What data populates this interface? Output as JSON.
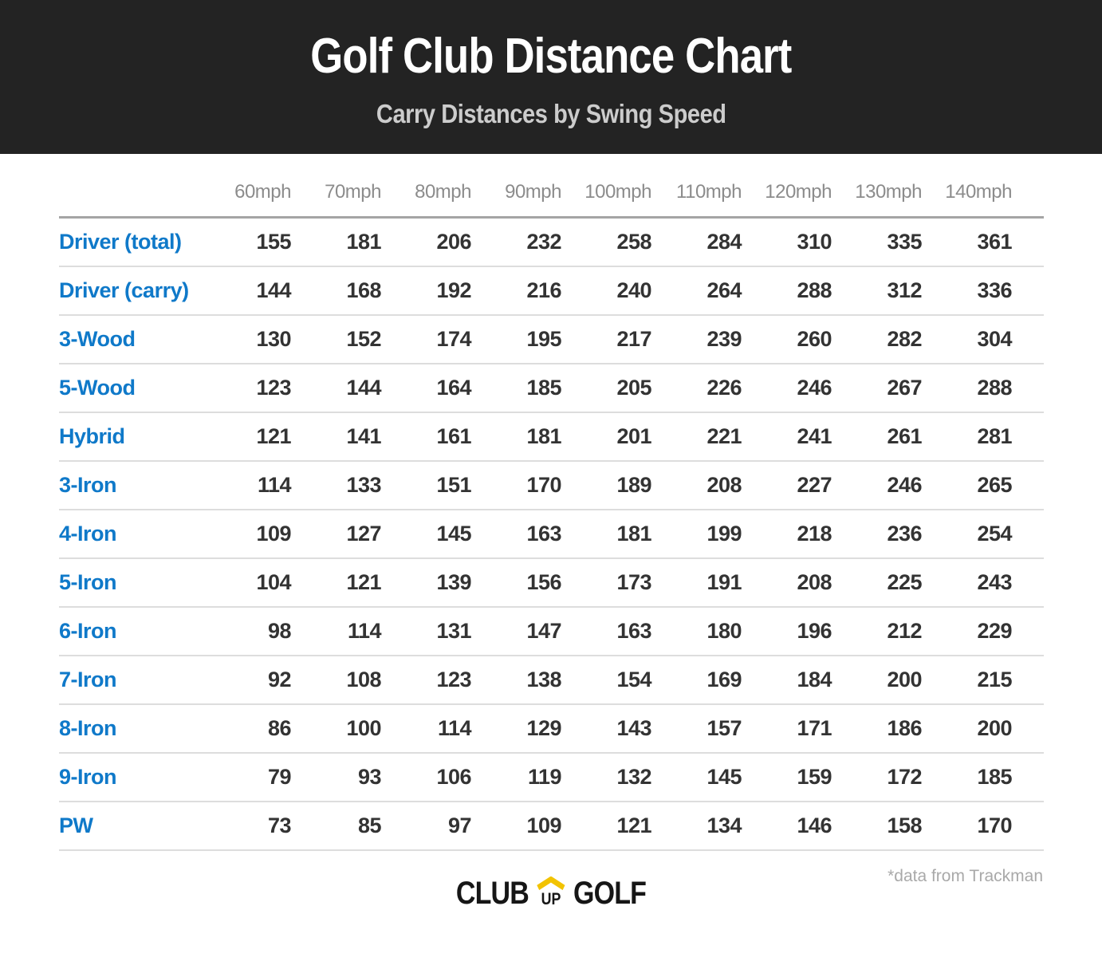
{
  "banner": {
    "title": "Golf Club Distance Chart",
    "subtitle": "Carry Distances by Swing Speed"
  },
  "chart_data": {
    "type": "table",
    "title": "Golf Club Distance Chart",
    "subtitle": "Carry Distances by Swing Speed",
    "categories": [
      "60mph",
      "70mph",
      "80mph",
      "90mph",
      "100mph",
      "110mph",
      "120mph",
      "130mph",
      "140mph"
    ],
    "series": [
      {
        "name": "Driver (total)",
        "values": [
          155,
          181,
          206,
          232,
          258,
          284,
          310,
          335,
          361
        ]
      },
      {
        "name": "Driver (carry)",
        "values": [
          144,
          168,
          192,
          216,
          240,
          264,
          288,
          312,
          336
        ]
      },
      {
        "name": "3-Wood",
        "values": [
          130,
          152,
          174,
          195,
          217,
          239,
          260,
          282,
          304
        ]
      },
      {
        "name": "5-Wood",
        "values": [
          123,
          144,
          164,
          185,
          205,
          226,
          246,
          267,
          288
        ]
      },
      {
        "name": "Hybrid",
        "values": [
          121,
          141,
          161,
          181,
          201,
          221,
          241,
          261,
          281
        ]
      },
      {
        "name": "3-Iron",
        "values": [
          114,
          133,
          151,
          170,
          189,
          208,
          227,
          246,
          265
        ]
      },
      {
        "name": "4-Iron",
        "values": [
          109,
          127,
          145,
          163,
          181,
          199,
          218,
          236,
          254
        ]
      },
      {
        "name": "5-Iron",
        "values": [
          104,
          121,
          139,
          156,
          173,
          191,
          208,
          225,
          243
        ]
      },
      {
        "name": "6-Iron",
        "values": [
          98,
          114,
          131,
          147,
          163,
          180,
          196,
          212,
          229
        ]
      },
      {
        "name": "7-Iron",
        "values": [
          92,
          108,
          123,
          138,
          154,
          169,
          184,
          200,
          215
        ]
      },
      {
        "name": "8-Iron",
        "values": [
          86,
          100,
          114,
          129,
          143,
          157,
          171,
          186,
          200
        ]
      },
      {
        "name": "9-Iron",
        "values": [
          79,
          93,
          106,
          119,
          132,
          145,
          159,
          172,
          185
        ]
      },
      {
        "name": "PW",
        "values": [
          73,
          85,
          97,
          109,
          121,
          134,
          146,
          158,
          170
        ]
      }
    ],
    "row_header_label": "",
    "legend_position": "none",
    "grid": "horizontal-rules"
  },
  "footer": {
    "note": "*data from Trackman",
    "logo": {
      "club": "CLUB",
      "up": "UP",
      "golf": "GOLF",
      "chevron_icon": "chevron-up-icon"
    }
  },
  "colors": {
    "banner_bg": "#232323",
    "title_white": "#ffffff",
    "subtitle_gray": "#cccccc",
    "club_label_blue": "#0f79c9",
    "value_text": "#333333",
    "speed_header_gray": "#8c8c8c",
    "header_rule": "#a5a5a5",
    "row_rule": "#dddddd",
    "note_gray": "#a9a9a9",
    "logo_black": "#161616",
    "logo_chevron_yellow": "#f2c301"
  }
}
